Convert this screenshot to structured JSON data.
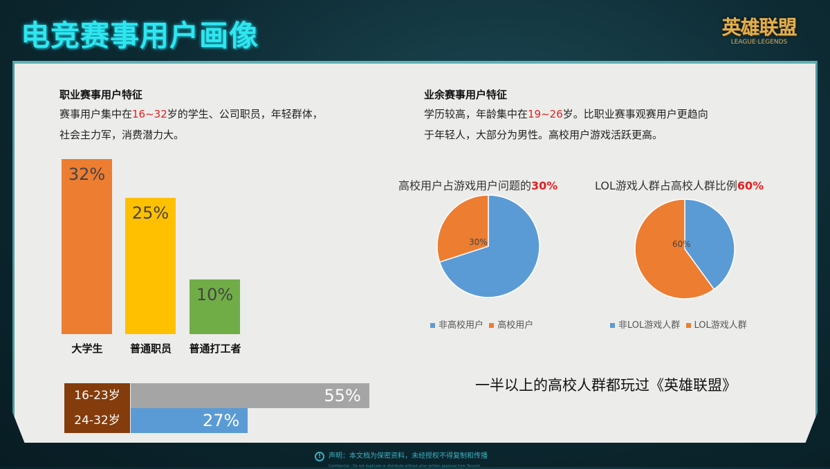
{
  "title": "电竞赛事用户画像",
  "logo": {
    "cn": "英雄联盟",
    "en": "LEAGUE·LEGENDS"
  },
  "pro": {
    "heading": "职业赛事用户特征",
    "line1_pre": "赛事用户集中在",
    "line1_hl": "16~32",
    "line1_post": "岁的学生、公司职员，年轻群体，",
    "line2": "社会主力军，消费潜力大。"
  },
  "amateur": {
    "heading": "业余赛事用户特征",
    "line1_pre": "学历较高，年龄集中在",
    "line1_hl": "19~26",
    "line1_post": "岁。比职业赛事观赛用户更趋向",
    "line2": "于年轻人，大部分为男性。高校用户游戏活跃更高。"
  },
  "conclusion": "一半以上的高校人群都玩过《英雄联盟》",
  "footer": {
    "notice": "声明：本文档为保密资料，未经授权不得复制和传播",
    "notice_en": "Confidential - Do not duplicate or distribute without prior written approval from Tencent",
    "icon": "info-icon"
  },
  "chart_data": [
    {
      "type": "bar",
      "categories": [
        "大学生",
        "普通职员",
        "普通打工者"
      ],
      "values": [
        32,
        25,
        10
      ],
      "labels": [
        "32%",
        "25%",
        "10%"
      ],
      "colors": [
        "#ed7d31",
        "#ffc000",
        "#70ad47"
      ]
    },
    {
      "type": "bar",
      "orientation": "horizontal",
      "categories": [
        "16-23岁",
        "24-32岁"
      ],
      "values": [
        55,
        27
      ],
      "labels": [
        "55%",
        "27%"
      ],
      "colors": [
        "#a5a5a5",
        "#5b9bd5"
      ]
    },
    {
      "type": "pie",
      "title_pre": "高校用户占游戏用户问题的",
      "title_hl": "30%",
      "slices": [
        {
          "name": "非高校用户",
          "value": 70,
          "color": "#5b9bd5"
        },
        {
          "name": "高校用户",
          "value": 30,
          "color": "#ed7d31"
        }
      ],
      "data_label": "30%"
    },
    {
      "type": "pie",
      "title_pre": "LOL游戏人群占高校人群比例",
      "title_hl": "60%",
      "slices": [
        {
          "name": "非LOL游戏人群",
          "value": 40,
          "color": "#5b9bd5"
        },
        {
          "name": "LOL游戏人群",
          "value": 60,
          "color": "#ed7d31"
        }
      ],
      "data_label": "60%"
    }
  ]
}
